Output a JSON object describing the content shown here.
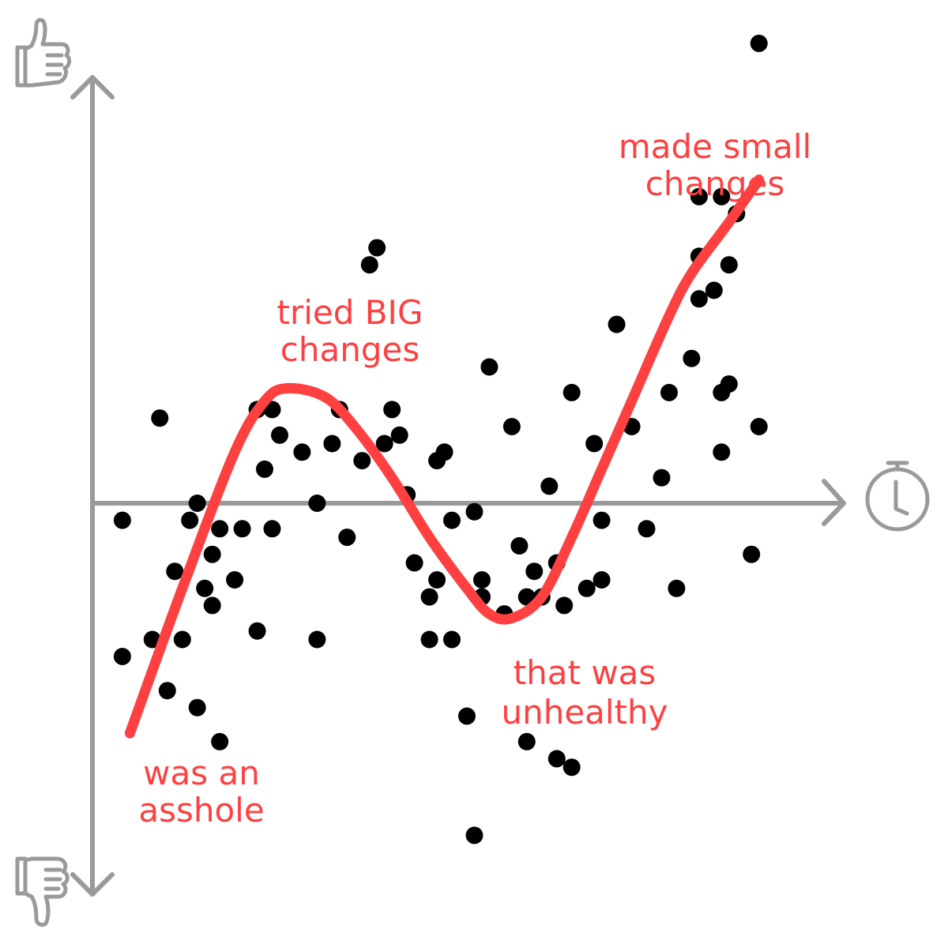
{
  "chart_data": {
    "type": "scatter",
    "title": "",
    "xlabel": "",
    "ylabel": "",
    "x_axis_icon": "stopwatch-icon",
    "y_axis_top_icon": "thumbs-up-icon",
    "y_axis_bottom_icon": "thumbs-down-icon",
    "axis_color": "#9a9a9a",
    "trend_color": "#ff4040",
    "point_color": "#000000",
    "grid": false,
    "xlim": [
      0,
      100
    ],
    "ylim": [
      -50,
      50
    ],
    "points": [
      [
        4,
        -2
      ],
      [
        4,
        -18
      ],
      [
        9,
        10
      ],
      [
        8,
        -16
      ],
      [
        10,
        -22
      ],
      [
        11,
        -8
      ],
      [
        12,
        -16
      ],
      [
        13,
        -2
      ],
      [
        14,
        0
      ],
      [
        14,
        -24
      ],
      [
        15,
        -10
      ],
      [
        16,
        -6
      ],
      [
        17,
        -3
      ],
      [
        16,
        -12
      ],
      [
        17,
        -28
      ],
      [
        19,
        -9
      ],
      [
        20,
        -3
      ],
      [
        22,
        11
      ],
      [
        22,
        -15
      ],
      [
        23,
        4
      ],
      [
        24,
        11
      ],
      [
        24,
        -3
      ],
      [
        25,
        8
      ],
      [
        28,
        6
      ],
      [
        30,
        0
      ],
      [
        30,
        -16
      ],
      [
        32,
        7
      ],
      [
        33,
        11
      ],
      [
        34,
        -4
      ],
      [
        36,
        5
      ],
      [
        37,
        28
      ],
      [
        38,
        30
      ],
      [
        39,
        7
      ],
      [
        40,
        11
      ],
      [
        41,
        8
      ],
      [
        42,
        1
      ],
      [
        43,
        -7
      ],
      [
        45,
        -11
      ],
      [
        45,
        -16
      ],
      [
        46,
        5
      ],
      [
        46,
        -9
      ],
      [
        47,
        6
      ],
      [
        48,
        -2
      ],
      [
        48,
        -16
      ],
      [
        50,
        -25
      ],
      [
        51,
        -1
      ],
      [
        51,
        -39
      ],
      [
        52,
        -9
      ],
      [
        52,
        -11
      ],
      [
        53,
        16
      ],
      [
        55,
        -13
      ],
      [
        56,
        9
      ],
      [
        57,
        -5
      ],
      [
        58,
        -11
      ],
      [
        58,
        -28
      ],
      [
        59,
        -8
      ],
      [
        60,
        -11
      ],
      [
        61,
        2
      ],
      [
        62,
        -7
      ],
      [
        62,
        -30
      ],
      [
        63,
        -12
      ],
      [
        64,
        13
      ],
      [
        64,
        -31
      ],
      [
        66,
        -10
      ],
      [
        67,
        7
      ],
      [
        68,
        -2
      ],
      [
        68,
        -9
      ],
      [
        70,
        21
      ],
      [
        72,
        9
      ],
      [
        74,
        -3
      ],
      [
        76,
        3
      ],
      [
        77,
        13
      ],
      [
        78,
        -10
      ],
      [
        80,
        17
      ],
      [
        81,
        24
      ],
      [
        81,
        36
      ],
      [
        81,
        29
      ],
      [
        83,
        25
      ],
      [
        84,
        6
      ],
      [
        84,
        13
      ],
      [
        84,
        36
      ],
      [
        85,
        28
      ],
      [
        85,
        14
      ],
      [
        86,
        34
      ],
      [
        88,
        -6
      ],
      [
        89,
        9
      ],
      [
        89,
        54
      ]
    ],
    "trend": {
      "x": [
        5,
        12,
        19,
        23,
        26,
        31,
        35,
        40,
        45,
        50,
        53,
        56,
        60,
        64,
        68,
        72,
        77,
        80,
        85,
        89
      ],
      "y": [
        -27,
        -10,
        6,
        12,
        13.5,
        12.5,
        9,
        3,
        -4,
        -10,
        -13,
        -13.5,
        -11,
        -4,
        4,
        12,
        22,
        27,
        33,
        38
      ]
    },
    "annotations": [
      {
        "text": [
          "was an",
          "asshole"
        ],
        "color": "#ff4040"
      },
      {
        "text": [
          "tried BIG",
          "changes"
        ],
        "color": "#ff4040"
      },
      {
        "text": [
          "that was",
          "unhealthy"
        ],
        "color": "#ff4040"
      },
      {
        "text": [
          "made small",
          "changes"
        ],
        "color": "#ff4040"
      }
    ]
  }
}
